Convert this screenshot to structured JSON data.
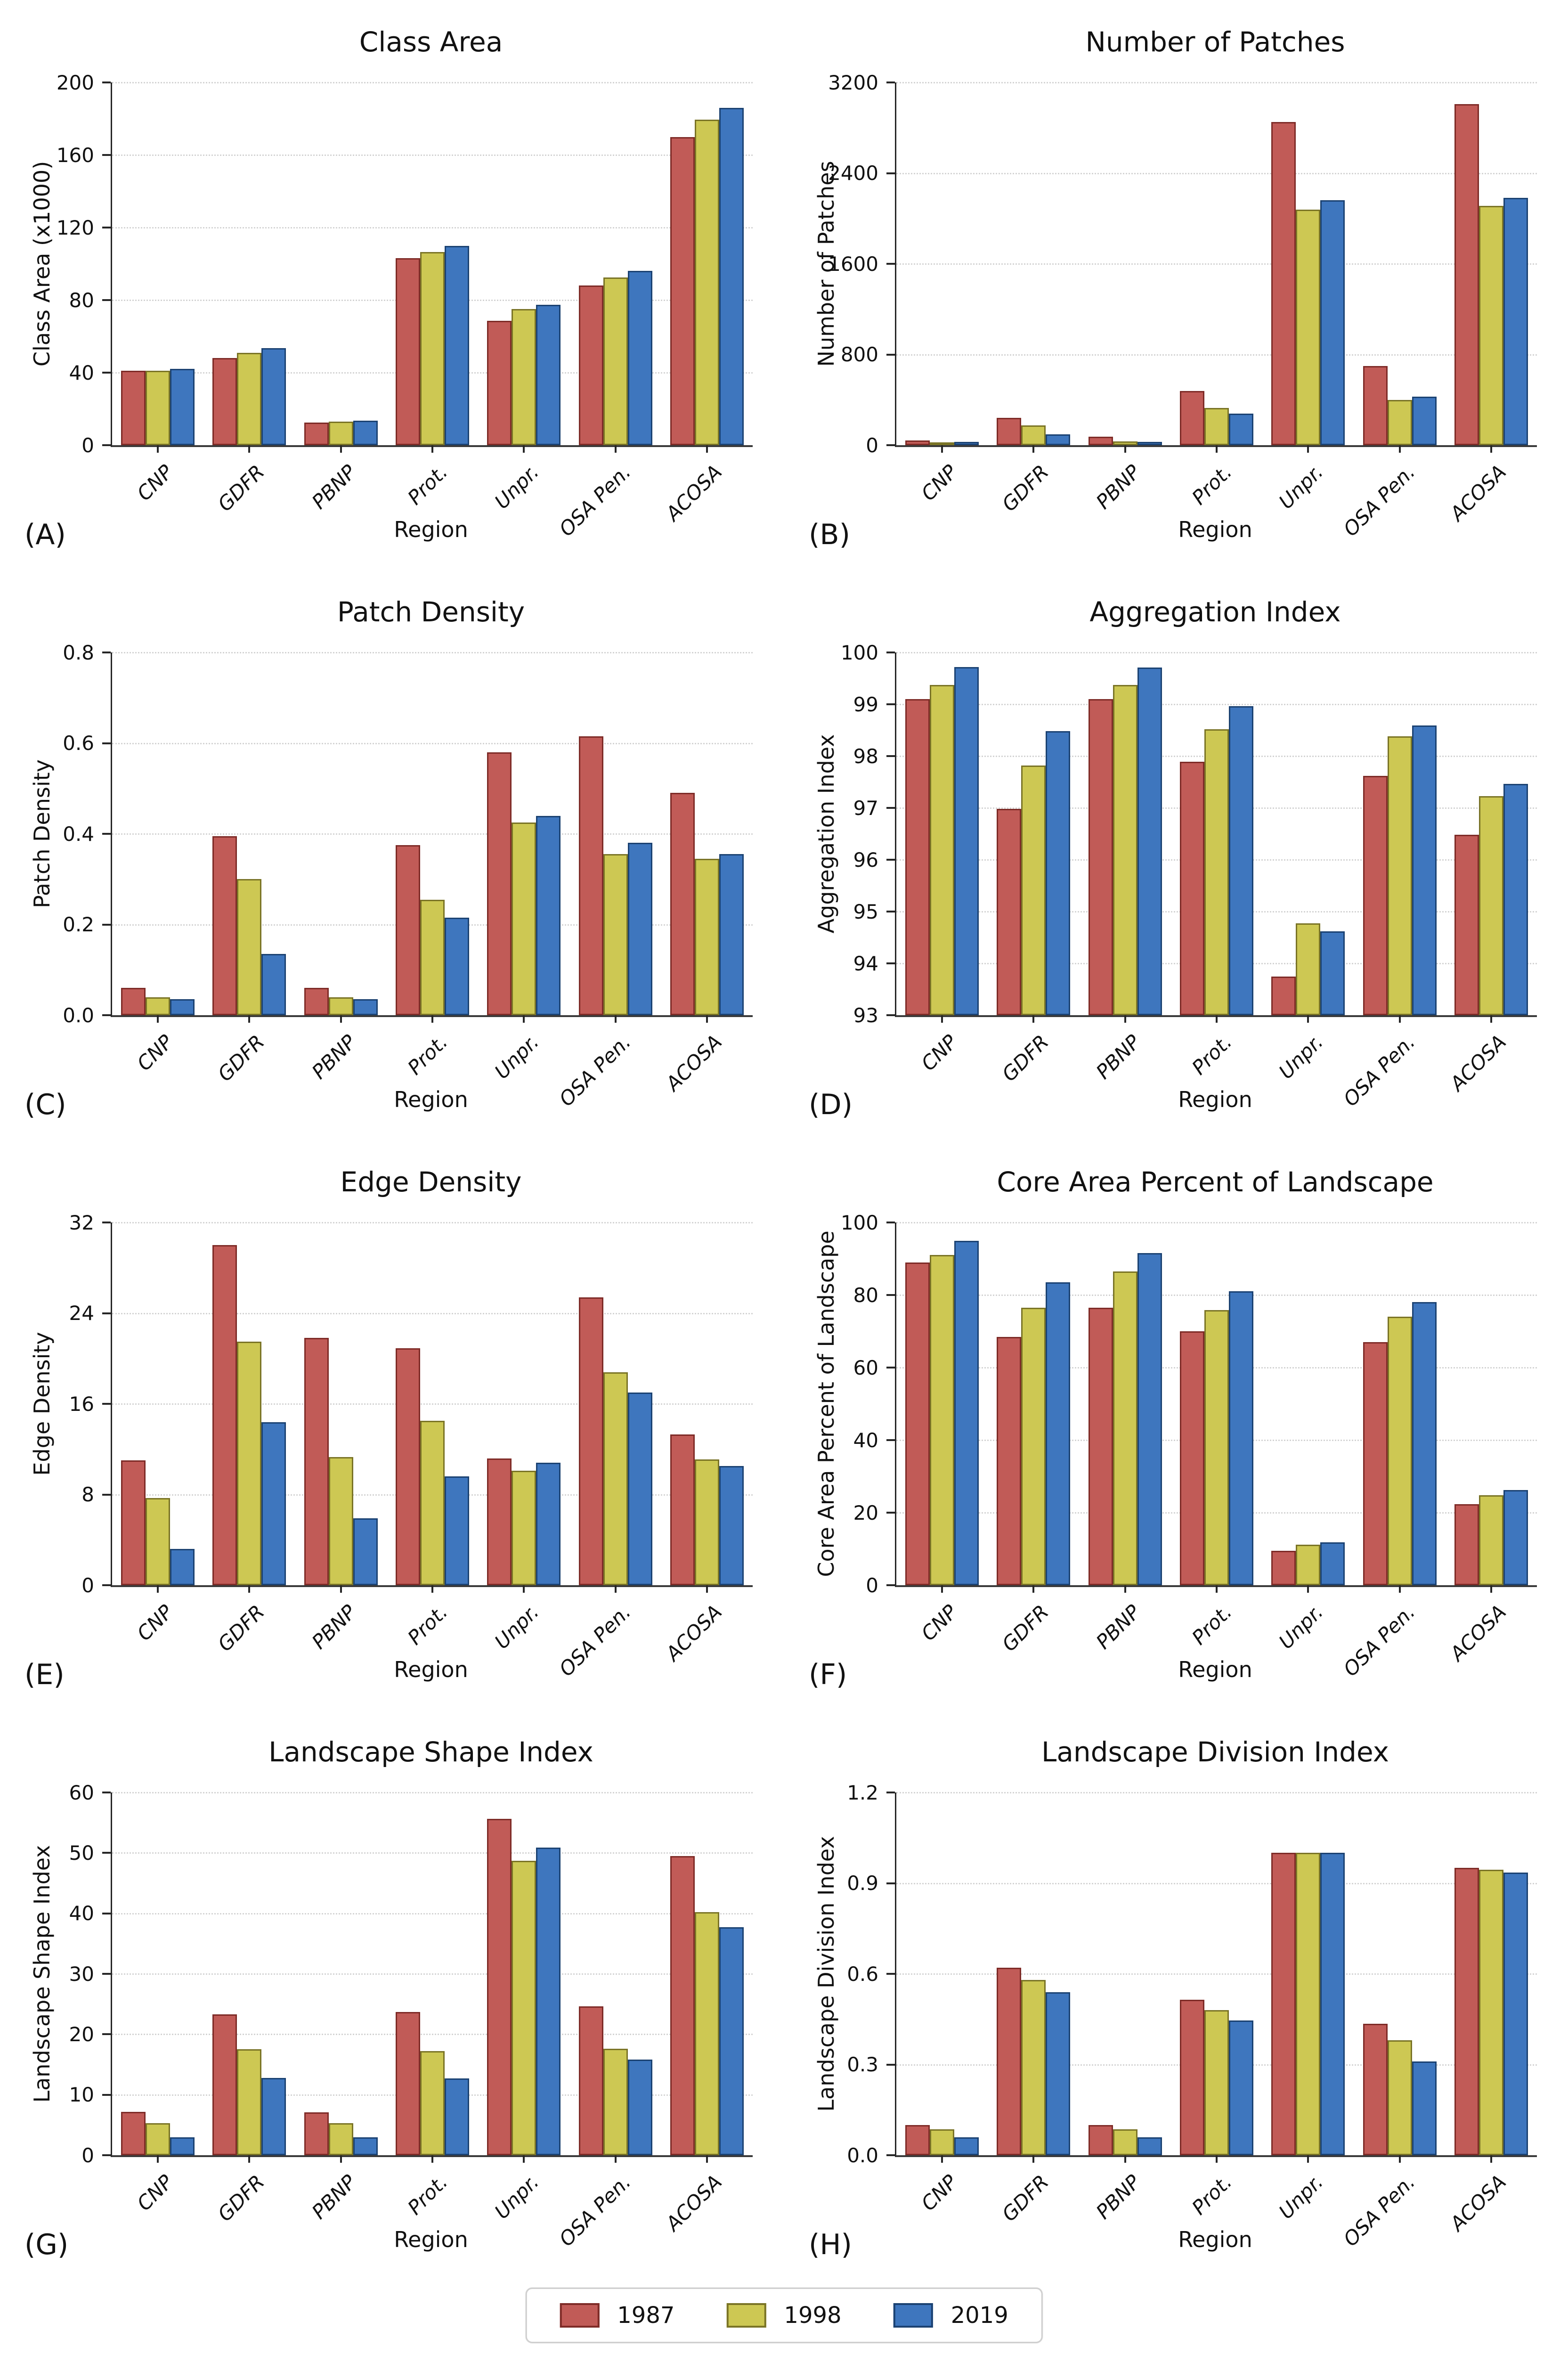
{
  "figure": {
    "xlabel": "Region",
    "categories": [
      "CNP",
      "GDFR",
      "PBNP",
      "Prot.",
      "Unpr.",
      "OSA Pen.",
      "ACOSA"
    ]
  },
  "legend": {
    "series": [
      {
        "label": "1987",
        "fill": "#C15B57",
        "border": "#7E2B27"
      },
      {
        "label": "1998",
        "fill": "#CDC853",
        "border": "#7A7426"
      },
      {
        "label": "2019",
        "fill": "#3E76BE",
        "border": "#1B4272"
      }
    ]
  },
  "chart_data": [
    {
      "type": "bar",
      "letter": "(A)",
      "title": "Class Area",
      "xlabel": "Region",
      "ylabel": "Class Area (x1000)",
      "ylim": [
        0,
        200
      ],
      "yticks": [
        0,
        40,
        80,
        120,
        160,
        200
      ],
      "ytick_labels": [
        "0",
        "40",
        "80",
        "120",
        "160",
        "200"
      ],
      "grid": true,
      "legend_position": "figure-bottom",
      "categories": [
        "CNP",
        "GDFR",
        "PBNP",
        "Prot.",
        "Unpr.",
        "OSA Pen.",
        "ACOSA"
      ],
      "series": [
        {
          "name": "1987",
          "values": [
            41,
            48,
            12.5,
            103,
            68.5,
            88,
            170
          ]
        },
        {
          "name": "1998",
          "values": [
            41,
            51,
            13,
            106.5,
            75,
            92.5,
            179.5
          ]
        },
        {
          "name": "2019",
          "values": [
            42,
            53.5,
            13.5,
            110,
            77.5,
            96,
            186
          ]
        }
      ]
    },
    {
      "type": "bar",
      "letter": "(B)",
      "title": "Number of Patches",
      "xlabel": "Region",
      "ylabel": "Number of Patches",
      "ylim": [
        0,
        3200
      ],
      "yticks": [
        0,
        800,
        1600,
        2400,
        3200
      ],
      "ytick_labels": [
        "0",
        "800",
        "1600",
        "2400",
        "3200"
      ],
      "grid": true,
      "legend_position": "figure-bottom",
      "categories": [
        "CNP",
        "GDFR",
        "PBNP",
        "Prot.",
        "Unpr.",
        "OSA Pen.",
        "ACOSA"
      ],
      "series": [
        {
          "name": "1987",
          "values": [
            40,
            240,
            75,
            480,
            2850,
            700,
            3010
          ]
        },
        {
          "name": "1998",
          "values": [
            25,
            175,
            35,
            330,
            2080,
            400,
            2110
          ]
        },
        {
          "name": "2019",
          "values": [
            30,
            95,
            30,
            280,
            2160,
            430,
            2180
          ]
        }
      ]
    },
    {
      "type": "bar",
      "letter": "(C)",
      "title": "Patch Density",
      "xlabel": "Region",
      "ylabel": "Patch Density",
      "ylim": [
        0,
        0.8
      ],
      "yticks": [
        0,
        0.2,
        0.4,
        0.6,
        0.8
      ],
      "ytick_labels": [
        "0.0",
        "0.2",
        "0.4",
        "0.6",
        "0.8"
      ],
      "grid": true,
      "legend_position": "figure-bottom",
      "categories": [
        "CNP",
        "GDFR",
        "PBNP",
        "Prot.",
        "Unpr.",
        "OSA Pen.",
        "ACOSA"
      ],
      "series": [
        {
          "name": "1987",
          "values": [
            0.06,
            0.395,
            0.06,
            0.375,
            0.58,
            0.615,
            0.49
          ]
        },
        {
          "name": "1998",
          "values": [
            0.04,
            0.3,
            0.04,
            0.255,
            0.425,
            0.355,
            0.345
          ]
        },
        {
          "name": "2019",
          "values": [
            0.035,
            0.135,
            0.035,
            0.215,
            0.44,
            0.38,
            0.355
          ]
        }
      ]
    },
    {
      "type": "bar",
      "letter": "(D)",
      "title": "Aggregation Index",
      "xlabel": "Region",
      "ylabel": "Aggregation Index",
      "ylim": [
        93,
        100
      ],
      "yticks": [
        93,
        94,
        95,
        96,
        97,
        98,
        99,
        100
      ],
      "ytick_labels": [
        "93",
        "94",
        "95",
        "96",
        "97",
        "98",
        "99",
        "100"
      ],
      "grid": true,
      "legend_position": "figure-bottom",
      "categories": [
        "CNP",
        "GDFR",
        "PBNP",
        "Prot.",
        "Unpr.",
        "OSA Pen.",
        "ACOSA"
      ],
      "series": [
        {
          "name": "1987",
          "values": [
            99.1,
            96.98,
            99.1,
            97.89,
            93.75,
            97.62,
            96.48
          ]
        },
        {
          "name": "1998",
          "values": [
            99.37,
            97.82,
            99.37,
            98.52,
            94.77,
            98.38,
            97.23
          ]
        },
        {
          "name": "2019",
          "values": [
            99.72,
            98.48,
            99.71,
            98.96,
            94.62,
            98.59,
            97.46
          ]
        }
      ]
    },
    {
      "type": "bar",
      "letter": "(E)",
      "title": "Edge Density",
      "xlabel": "Region",
      "ylabel": "Edge Density",
      "ylim": [
        0,
        32
      ],
      "yticks": [
        0,
        8,
        16,
        24,
        32
      ],
      "ytick_labels": [
        "0",
        "8",
        "16",
        "24",
        "32"
      ],
      "grid": true,
      "legend_position": "figure-bottom",
      "categories": [
        "CNP",
        "GDFR",
        "PBNP",
        "Prot.",
        "Unpr.",
        "OSA Pen.",
        "ACOSA"
      ],
      "series": [
        {
          "name": "1987",
          "values": [
            11.0,
            30.0,
            21.8,
            20.9,
            11.2,
            25.4,
            13.3
          ]
        },
        {
          "name": "1998",
          "values": [
            7.7,
            21.5,
            11.3,
            14.5,
            10.1,
            18.8,
            11.1
          ]
        },
        {
          "name": "2019",
          "values": [
            3.2,
            14.4,
            5.9,
            9.6,
            10.8,
            17.0,
            10.5
          ]
        }
      ]
    },
    {
      "type": "bar",
      "letter": "(F)",
      "title": "Core Area Percent of Landscape",
      "xlabel": "Region",
      "ylabel": "Core Area Percent of Landscape",
      "ylim": [
        0,
        100
      ],
      "yticks": [
        0,
        20,
        40,
        60,
        80,
        100
      ],
      "ytick_labels": [
        "0",
        "20",
        "40",
        "60",
        "80",
        "100"
      ],
      "grid": true,
      "legend_position": "figure-bottom",
      "categories": [
        "CNP",
        "GDFR",
        "PBNP",
        "Prot.",
        "Unpr.",
        "OSA Pen.",
        "ACOSA"
      ],
      "series": [
        {
          "name": "1987",
          "values": [
            89,
            68.5,
            76.5,
            70,
            9.5,
            67,
            22.3
          ]
        },
        {
          "name": "1998",
          "values": [
            91,
            76.5,
            86.5,
            75.8,
            11.2,
            74,
            24.8
          ]
        },
        {
          "name": "2019",
          "values": [
            95,
            83.5,
            91.5,
            81,
            11.8,
            78,
            26.3
          ]
        }
      ]
    },
    {
      "type": "bar",
      "letter": "(G)",
      "title": "Landscape Shape Index",
      "xlabel": "Region",
      "ylabel": "Landscape Shape Index",
      "ylim": [
        0,
        60
      ],
      "yticks": [
        0,
        10,
        20,
        30,
        40,
        50,
        60
      ],
      "ytick_labels": [
        "0",
        "10",
        "20",
        "30",
        "40",
        "50",
        "60"
      ],
      "grid": true,
      "legend_position": "figure-bottom",
      "categories": [
        "CNP",
        "GDFR",
        "PBNP",
        "Prot.",
        "Unpr.",
        "OSA Pen.",
        "ACOSA"
      ],
      "series": [
        {
          "name": "1987",
          "values": [
            7.2,
            23.3,
            7.1,
            23.7,
            55.6,
            24.6,
            49.5
          ]
        },
        {
          "name": "1998",
          "values": [
            5.3,
            17.5,
            5.3,
            17.2,
            48.7,
            17.6,
            40.2
          ]
        },
        {
          "name": "2019",
          "values": [
            3.0,
            12.8,
            3.0,
            12.7,
            50.9,
            15.8,
            37.7
          ]
        }
      ]
    },
    {
      "type": "bar",
      "letter": "(H)",
      "title": "Landscape Division Index",
      "xlabel": "Region",
      "ylabel": "Landscape Division Index",
      "ylim": [
        0,
        1.2
      ],
      "yticks": [
        0,
        0.3,
        0.6,
        0.9,
        1.2
      ],
      "ytick_labels": [
        "0.0",
        "0.3",
        "0.6",
        "0.9",
        "1.2"
      ],
      "grid": true,
      "legend_position": "figure-bottom",
      "categories": [
        "CNP",
        "GDFR",
        "PBNP",
        "Prot.",
        "Unpr.",
        "OSA Pen.",
        "ACOSA"
      ],
      "series": [
        {
          "name": "1987",
          "values": [
            0.1,
            0.62,
            0.1,
            0.515,
            1.0,
            0.435,
            0.95
          ]
        },
        {
          "name": "1998",
          "values": [
            0.085,
            0.58,
            0.085,
            0.48,
            1.0,
            0.38,
            0.945
          ]
        },
        {
          "name": "2019",
          "values": [
            0.06,
            0.54,
            0.06,
            0.445,
            1.0,
            0.31,
            0.935
          ]
        }
      ]
    }
  ]
}
